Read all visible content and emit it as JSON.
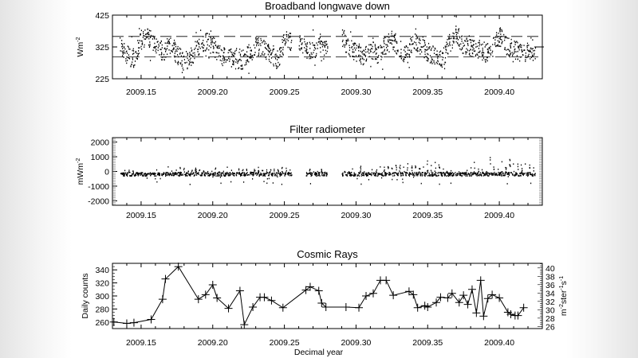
{
  "chart_data": [
    {
      "type": "scatter",
      "title": "Broadband longwave down",
      "ylabel": "Wm",
      "ylabel_sup": "-2",
      "xlim": [
        2009.13,
        2009.43
      ],
      "ylim": [
        225,
        425
      ],
      "yticks": [
        225,
        325,
        425
      ],
      "xticks": [
        "2009.15",
        "2009.20",
        "2009.25",
        "2009.30",
        "2009.35",
        "2009.40"
      ],
      "reference_lines": [
        294,
        358
      ],
      "right_marker": 325,
      "x": [
        2009.135,
        2009.14,
        2009.145,
        2009.15,
        2009.155,
        2009.16,
        2009.165,
        2009.17,
        2009.175,
        2009.18,
        2009.185,
        2009.19,
        2009.195,
        2009.2,
        2009.205,
        2009.21,
        2009.215,
        2009.22,
        2009.225,
        2009.23,
        2009.235,
        2009.24,
        2009.245,
        2009.25,
        2009.255,
        2009.26,
        2009.265,
        2009.27,
        2009.275,
        2009.28,
        2009.285,
        2009.29,
        2009.295,
        2009.3,
        2009.305,
        2009.31,
        2009.315,
        2009.32,
        2009.325,
        2009.33,
        2009.335,
        2009.34,
        2009.345,
        2009.35,
        2009.355,
        2009.36,
        2009.365,
        2009.37,
        2009.375,
        2009.38,
        2009.385,
        2009.39,
        2009.395,
        2009.4,
        2009.405,
        2009.41,
        2009.415,
        2009.42
      ],
      "values": [
        330,
        300,
        290,
        350,
        355,
        340,
        310,
        335,
        300,
        280,
        300,
        330,
        345,
        330,
        300,
        290,
        300,
        285,
        305,
        330,
        320,
        300,
        285,
        345,
        null,
        340,
        320,
        310,
        330,
        null,
        null,
        360,
        320,
        310,
        300,
        320,
        305,
        330,
        350,
        325,
        300,
        350,
        330,
        310,
        300,
        285,
        340,
        365,
        330,
        320,
        320,
        310,
        320,
        360,
        330,
        320,
        310,
        310
      ]
    },
    {
      "type": "scatter",
      "title": "Filter radiometer",
      "ylabel": "mWm",
      "ylabel_sup": "-2",
      "xlim": [
        2009.13,
        2009.43
      ],
      "ylim": [
        -2300,
        2300
      ],
      "yticks": [
        -2000,
        -1000,
        0,
        1000,
        2000
      ],
      "xticks": [
        "2009.15",
        "2009.20",
        "2009.25",
        "2009.30",
        "2009.35",
        "2009.40"
      ],
      "baseline": -150,
      "x": [
        2009.135,
        2009.14,
        2009.145,
        2009.15,
        2009.155,
        2009.16,
        2009.165,
        2009.17,
        2009.175,
        2009.18,
        2009.185,
        2009.19,
        2009.195,
        2009.2,
        2009.205,
        2009.21,
        2009.215,
        2009.22,
        2009.225,
        2009.23,
        2009.235,
        2009.24,
        2009.245,
        2009.25,
        2009.255,
        2009.26,
        2009.265,
        2009.27,
        2009.275,
        2009.28,
        2009.285,
        2009.29,
        2009.295,
        2009.3,
        2009.305,
        2009.31,
        2009.315,
        2009.32,
        2009.325,
        2009.33,
        2009.335,
        2009.34,
        2009.345,
        2009.35,
        2009.355,
        2009.36,
        2009.365,
        2009.37,
        2009.375,
        2009.38,
        2009.385,
        2009.39,
        2009.395,
        2009.4,
        2009.405,
        2009.41,
        2009.415,
        2009.42
      ],
      "daily_peak": [
        400,
        300,
        200,
        100,
        100,
        500,
        600,
        600,
        550,
        600,
        500,
        600,
        500,
        600,
        550,
        500,
        500,
        550,
        500,
        600,
        600,
        600,
        600,
        550,
        null,
        null,
        600,
        550,
        500,
        null,
        null,
        300,
        600,
        650,
        650,
        600,
        600,
        700,
        900,
        1000,
        900,
        1000,
        1000,
        900,
        1000,
        900,
        300,
        200,
        1000,
        1100,
        1000,
        1200,
        1000,
        1100,
        1300,
        1200,
        1100,
        800
      ]
    },
    {
      "type": "line",
      "title": "Cosmic Rays",
      "xlabel": "Decimal year",
      "ylabel": "Daily counts",
      "ylabel_right": "m",
      "ylabel_right_full": "m-2ster-1s-1",
      "xlim": [
        2009.13,
        2009.43
      ],
      "ylim": [
        250,
        350
      ],
      "yticks": [
        260,
        280,
        300,
        320,
        340
      ],
      "ylim_right": [
        25.5,
        41.1
      ],
      "yticks_right": [
        26,
        28,
        30,
        32,
        34,
        36,
        38,
        40
      ],
      "xticks": [
        "2009.15",
        "2009.20",
        "2009.25",
        "2009.30",
        "2009.35",
        "2009.40"
      ],
      "marker": "plus",
      "x": [
        2009.131,
        2009.14,
        2009.145,
        2009.157,
        2009.165,
        2009.167,
        2009.176,
        2009.19,
        2009.195,
        2009.2,
        2009.203,
        2009.211,
        2009.219,
        2009.222,
        2009.228,
        2009.233,
        2009.236,
        2009.241,
        2009.249,
        2009.265,
        2009.268,
        2009.274,
        2009.276,
        2009.279,
        2009.293,
        2009.302,
        2009.307,
        2009.312,
        2009.317,
        2009.321,
        2009.326,
        2009.337,
        2009.34,
        2009.343,
        2009.348,
        2009.35,
        2009.356,
        2009.359,
        2009.364,
        2009.367,
        2009.372,
        2009.375,
        2009.378,
        2009.381,
        2009.384,
        2009.387,
        2009.389,
        2009.392,
        2009.395,
        2009.4,
        2009.406,
        2009.408,
        2009.411,
        2009.413,
        2009.417
      ],
      "values": [
        260,
        258,
        259,
        264,
        295,
        326,
        345,
        295,
        302,
        317,
        297,
        281,
        308,
        256,
        283,
        298,
        298,
        293,
        282,
        309,
        314,
        308,
        289,
        283,
        283,
        282,
        300,
        304,
        324,
        324,
        301,
        307,
        302,
        282,
        285,
        283,
        290,
        298,
        297,
        304,
        290,
        301,
        287,
        310,
        274,
        324,
        269,
        296,
        302,
        297,
        275,
        272,
        270,
        270,
        282
      ]
    }
  ]
}
